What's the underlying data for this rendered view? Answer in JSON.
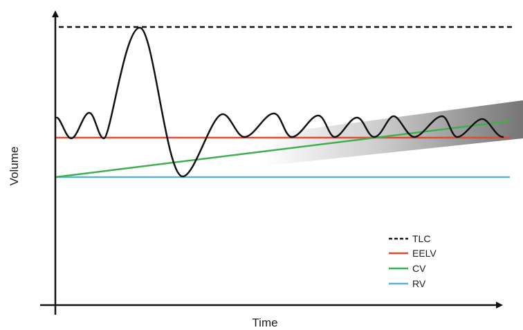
{
  "diagram": {
    "x_axis_label": "Time",
    "y_axis_label": "Volume",
    "colors": {
      "tlc": "#111111",
      "eelv": "#e04a35",
      "cv": "#3fae4f",
      "rv": "#5bb0dd",
      "tidal": "#111111",
      "shade": "#6e6e6e",
      "axis": "#111111"
    },
    "legend": [
      {
        "key": "tlc",
        "label": "TLC",
        "style": "dashed"
      },
      {
        "key": "eelv",
        "label": "EELV",
        "style": "solid"
      },
      {
        "key": "cv",
        "label": "CV",
        "style": "solid"
      },
      {
        "key": "rv",
        "label": "RV",
        "style": "solid"
      }
    ]
  }
}
